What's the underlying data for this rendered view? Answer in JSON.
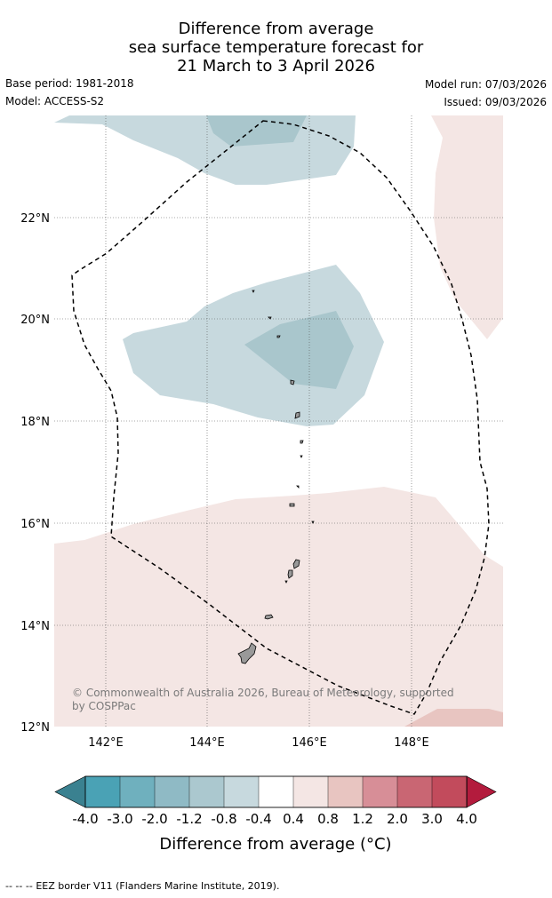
{
  "title": {
    "line1": "Difference from average",
    "line2": "sea surface temperature forecast for",
    "line3": "21 March to 3 April 2026"
  },
  "meta": {
    "base_period": "Base period: 1981-2018",
    "model": "Model: ACCESS-S2",
    "model_run": "Model run: 07/03/2026",
    "issued": "Issued: 09/03/2026"
  },
  "map": {
    "latitude_labels": [
      "22°N",
      "20°N",
      "18°N",
      "16°N",
      "14°N",
      "12°N"
    ],
    "longitude_labels": [
      "142°E",
      "144°E",
      "146°E",
      "148°E"
    ],
    "copyright_line1": "© Commonwealth of Australia 2026, Bureau of Meteorology, supported",
    "copyright_line2": "by COSPPac",
    "colors": {
      "cool_light": "#c7d9de",
      "cool_mid": "#a9c6cc",
      "warm_light": "#f4e6e4",
      "warm_mid": "#e8c5c1",
      "coast": "#000000",
      "land": "#999999"
    }
  },
  "colorbar": {
    "title": "Difference from average (°C)",
    "tick_labels": [
      "-4.0",
      "-3.0",
      "-2.0",
      "-1.2",
      "-0.8",
      "-0.4",
      "0.4",
      "0.8",
      "1.2",
      "2.0",
      "3.0",
      "4.0"
    ],
    "low_extend_color": "#3a8190",
    "high_extend_color": "#b31b3d",
    "segment_colors": [
      "#4aa2b5",
      "#6fb0be",
      "#8fbac5",
      "#abc8cf",
      "#c7d9de",
      "#ffffff",
      "#f4e6e4",
      "#e8c5c1",
      "#d78e97",
      "#c96673",
      "#c24b5c"
    ]
  },
  "footer": {
    "legend_symbol": "-- -- --",
    "legend_text": "EEZ border V11 (Flanders Marine Institute, 2019)."
  }
}
